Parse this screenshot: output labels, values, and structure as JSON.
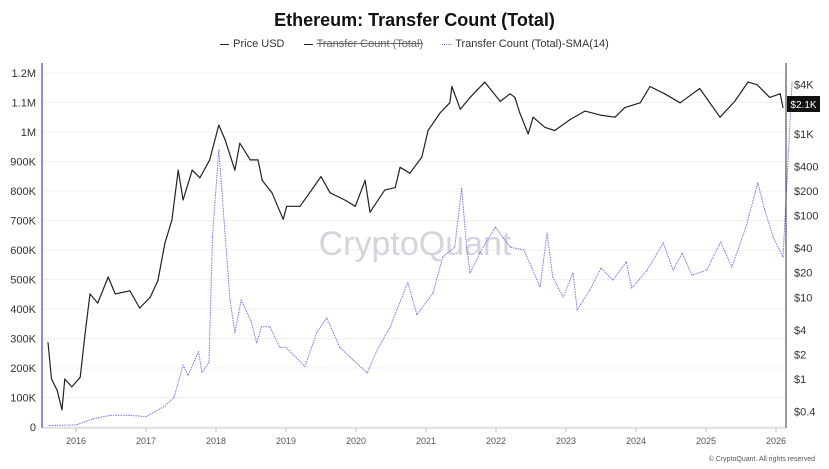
{
  "chart_data": {
    "type": "line",
    "title": "Ethereum: Transfer Count (Total)",
    "legend": {
      "placement": "top",
      "items": [
        {
          "label": "Price USD",
          "color": "#222222",
          "visible": true
        },
        {
          "label": "Transfer Count (Total)",
          "color": "#222222",
          "visible": false
        },
        {
          "label": "Transfer Count (Total)-SMA(14)",
          "color": "#7b72ee",
          "visible": true
        }
      ]
    },
    "x_ticks": [
      "2016",
      "2017",
      "2018",
      "2019",
      "2020",
      "2021",
      "2022",
      "2023",
      "2024",
      "2025",
      "2026"
    ],
    "y_left": {
      "range": [
        0,
        1200000
      ],
      "ticks": [
        "0",
        "100K",
        "200K",
        "300K",
        "400K",
        "500K",
        "600K",
        "700K",
        "800K",
        "900K",
        "1M",
        "1.1M",
        "1.2M"
      ],
      "grid": true
    },
    "y_right": {
      "scale": "log",
      "ticks": [
        {
          "label": "$0.4",
          "v": 0.4
        },
        {
          "label": "$1",
          "v": 1
        },
        {
          "label": "$2",
          "v": 2
        },
        {
          "label": "$4",
          "v": 4
        },
        {
          "label": "$10",
          "v": 10
        },
        {
          "label": "$20",
          "v": 20
        },
        {
          "label": "$40",
          "v": 40
        },
        {
          "label": "$100",
          "v": 100
        },
        {
          "label": "$200",
          "v": 200
        },
        {
          "label": "$400",
          "v": 400
        },
        {
          "label": "$1K",
          "v": 1000
        },
        {
          "label": "$4K",
          "v": 4000
        }
      ]
    },
    "current_price_label": "$2.1K",
    "series": [
      {
        "name": "Price USD",
        "axis": "right",
        "color": "#222222",
        "x": [
          2015.6,
          2015.65,
          2015.73,
          2015.8,
          2015.84,
          2015.94,
          2016.06,
          2016.13,
          2016.2,
          2016.31,
          2016.46,
          2016.56,
          2016.77,
          2016.91,
          2017.06,
          2017.17,
          2017.27,
          2017.37,
          2017.46,
          2017.53,
          2017.66,
          2017.77,
          2017.91,
          2018.04,
          2018.13,
          2018.27,
          2018.34,
          2018.49,
          2018.6,
          2018.66,
          2018.8,
          2018.96,
          2019.01,
          2019.2,
          2019.39,
          2019.5,
          2019.63,
          2019.84,
          2019.99,
          2020.13,
          2020.2,
          2020.41,
          2020.56,
          2020.63,
          2020.77,
          2020.94,
          2021.03,
          2021.2,
          2021.34,
          2021.37,
          2021.49,
          2021.63,
          2021.84,
          2022.06,
          2022.2,
          2022.27,
          2022.34,
          2022.46,
          2022.53,
          2022.7,
          2022.84,
          2023.06,
          2023.27,
          2023.49,
          2023.7,
          2023.84,
          2024.06,
          2024.2,
          2024.41,
          2024.63,
          2024.91,
          2025.2,
          2025.41,
          2025.6,
          2025.73,
          2025.91,
          2026.06,
          2026.1
        ],
        "y": [
          2.8,
          1.0,
          0.73,
          0.42,
          1.0,
          0.8,
          1.05,
          3.6,
          11,
          8.5,
          17.7,
          11,
          12,
          7.4,
          10,
          16,
          46,
          88,
          360,
          155,
          360,
          290,
          480,
          1280,
          850,
          360,
          770,
          480,
          480,
          270,
          190,
          90,
          130,
          130,
          220,
          300,
          190,
          155,
          130,
          270,
          110,
          205,
          220,
          390,
          330,
          520,
          1100,
          1800,
          2400,
          3800,
          2000,
          2800,
          4300,
          2500,
          3100,
          2800,
          1800,
          1000,
          1600,
          1200,
          1100,
          1500,
          1900,
          1700,
          1600,
          2100,
          2400,
          3800,
          3100,
          2400,
          3600,
          1600,
          2500,
          4300,
          4000,
          2800,
          3100,
          2100
        ]
      },
      {
        "name": "Transfer Count (Total)-SMA(14)",
        "axis": "left",
        "color": "#7b72ee",
        "x": [
          2015.62,
          2016.0,
          2016.25,
          2016.5,
          2016.75,
          2017.0,
          2017.25,
          2017.4,
          2017.53,
          2017.6,
          2017.75,
          2017.8,
          2017.9,
          2017.95,
          2018.04,
          2018.15,
          2018.2,
          2018.27,
          2018.36,
          2018.5,
          2018.58,
          2018.65,
          2018.77,
          2018.91,
          2019.0,
          2019.27,
          2019.44,
          2019.58,
          2019.77,
          2019.96,
          2020.16,
          2020.3,
          2020.49,
          2020.74,
          2020.87,
          2021.1,
          2021.24,
          2021.41,
          2021.51,
          2021.58,
          2021.63,
          2021.77,
          2021.99,
          2022.2,
          2022.4,
          2022.63,
          2022.73,
          2022.81,
          2022.96,
          2023.1,
          2023.16,
          2023.34,
          2023.5,
          2023.67,
          2023.86,
          2023.94,
          2024.16,
          2024.39,
          2024.53,
          2024.66,
          2024.8,
          2025.01,
          2025.21,
          2025.37,
          2025.57,
          2025.74,
          2025.84,
          2025.96,
          2026.1,
          2026.16,
          2026.23
        ],
        "y": [
          5000,
          7000,
          28000,
          40000,
          40000,
          35000,
          68000,
          100000,
          210000,
          175000,
          255000,
          185000,
          220000,
          645000,
          940000,
          590000,
          430000,
          320000,
          430000,
          360000,
          285000,
          340000,
          340000,
          270000,
          270000,
          205000,
          320000,
          370000,
          270000,
          227000,
          183000,
          260000,
          340000,
          490000,
          380000,
          455000,
          577000,
          610000,
          810000,
          610000,
          522000,
          590000,
          678000,
          610000,
          600000,
          475000,
          658000,
          508000,
          440000,
          522000,
          397000,
          464000,
          539000,
          498000,
          560000,
          471000,
          532000,
          624000,
          532000,
          590000,
          515000,
          532000,
          627000,
          542000,
          678000,
          827000,
          735000,
          644000,
          576000,
          848000,
          1170000
        ]
      }
    ]
  },
  "watermark": "CryptoQuant",
  "footer": "© CryptoQuant. All rights reserved"
}
